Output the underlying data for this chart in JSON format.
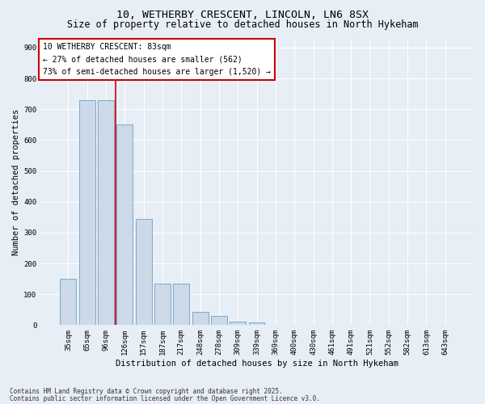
{
  "title_line1": "10, WETHERBY CRESCENT, LINCOLN, LN6 8SX",
  "title_line2": "Size of property relative to detached houses in North Hykeham",
  "xlabel": "Distribution of detached houses by size in North Hykeham",
  "ylabel": "Number of detached properties",
  "bar_color": "#ccd9e8",
  "bar_edge_color": "#7aaad0",
  "categories": [
    "35sqm",
    "65sqm",
    "96sqm",
    "126sqm",
    "157sqm",
    "187sqm",
    "217sqm",
    "248sqm",
    "278sqm",
    "309sqm",
    "339sqm",
    "369sqm",
    "400sqm",
    "430sqm",
    "461sqm",
    "491sqm",
    "521sqm",
    "552sqm",
    "582sqm",
    "613sqm",
    "643sqm"
  ],
  "values": [
    150,
    730,
    730,
    650,
    345,
    135,
    135,
    42,
    30,
    12,
    8,
    0,
    0,
    0,
    0,
    0,
    0,
    0,
    0,
    0,
    0
  ],
  "ylim": [
    0,
    930
  ],
  "yticks": [
    0,
    100,
    200,
    300,
    400,
    500,
    600,
    700,
    800,
    900
  ],
  "vline_x": 2.5,
  "vline_color": "#cc0000",
  "annotation_text": "10 WETHERBY CRESCENT: 83sqm\n← 27% of detached houses are smaller (562)\n73% of semi-detached houses are larger (1,520) →",
  "footer_line1": "Contains HM Land Registry data © Crown copyright and database right 2025.",
  "footer_line2": "Contains public sector information licensed under the Open Government Licence v3.0.",
  "bg_color": "#e8eef5",
  "plot_bg_color": "#e8eef5",
  "grid_color": "#ffffff",
  "title_fontsize": 9.5,
  "subtitle_fontsize": 8.5,
  "axis_label_fontsize": 7.5,
  "tick_fontsize": 6.5,
  "footer_fontsize": 5.5,
  "annotation_fontsize": 7
}
